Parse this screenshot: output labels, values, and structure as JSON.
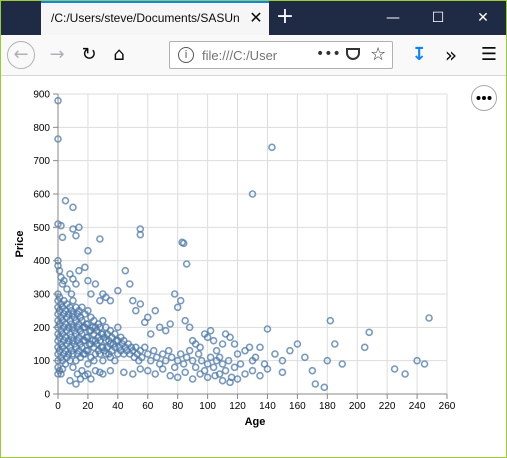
{
  "browser": {
    "tab_title": "/C:/Users/steve/Documents/SASUn",
    "url_text": "file:///C:/User",
    "icons": {
      "back": "back-arrow-icon",
      "forward": "forward-arrow-icon",
      "reload": "reload-icon",
      "home": "home-icon",
      "info": "info-icon",
      "more": "more-icon",
      "pocket": "pocket-icon",
      "bookmark": "star-icon",
      "download": "download-icon",
      "overflow": "overflow-icon",
      "menu": "hamburger-menu-icon"
    },
    "accent_color": "#0a84ff",
    "titlebar_color": "#1f2a44"
  },
  "chart_data": {
    "type": "scatter",
    "title": "",
    "xlabel": "Age",
    "ylabel": "Price",
    "xlim": [
      0,
      260
    ],
    "ylim": [
      0,
      900
    ],
    "xticks": [
      0,
      20,
      40,
      60,
      80,
      100,
      120,
      140,
      160,
      180,
      200,
      220,
      240,
      260
    ],
    "yticks": [
      0,
      100,
      200,
      300,
      400,
      500,
      600,
      700,
      800,
      900
    ],
    "grid": true,
    "point_color": "#4c78a8",
    "points": [
      [
        0,
        880
      ],
      [
        0,
        765
      ],
      [
        0,
        510
      ],
      [
        2,
        505
      ],
      [
        5,
        580
      ],
      [
        3,
        470
      ],
      [
        10,
        560
      ],
      [
        12,
        475
      ],
      [
        14,
        500
      ],
      [
        10,
        495
      ],
      [
        20,
        430
      ],
      [
        28,
        465
      ],
      [
        55,
        495
      ],
      [
        55,
        478
      ],
      [
        83,
        455
      ],
      [
        84,
        452
      ],
      [
        86,
        390
      ],
      [
        143,
        740
      ],
      [
        130,
        600
      ],
      [
        248,
        228
      ],
      [
        0,
        400
      ],
      [
        0,
        385
      ],
      [
        1,
        370
      ],
      [
        2,
        350
      ],
      [
        3,
        330
      ],
      [
        4,
        340
      ],
      [
        6,
        315
      ],
      [
        8,
        360
      ],
      [
        9,
        300
      ],
      [
        10,
        345
      ],
      [
        12,
        330
      ],
      [
        14,
        370
      ],
      [
        18,
        380
      ],
      [
        20,
        340
      ],
      [
        22,
        300
      ],
      [
        25,
        330
      ],
      [
        28,
        280
      ],
      [
        30,
        300
      ],
      [
        32,
        290
      ],
      [
        35,
        280
      ],
      [
        40,
        310
      ],
      [
        45,
        370
      ],
      [
        48,
        330
      ],
      [
        50,
        280
      ],
      [
        52,
        250
      ],
      [
        55,
        270
      ],
      [
        58,
        215
      ],
      [
        60,
        230
      ],
      [
        62,
        180
      ],
      [
        65,
        250
      ],
      [
        68,
        200
      ],
      [
        72,
        190
      ],
      [
        75,
        210
      ],
      [
        78,
        300
      ],
      [
        80,
        260
      ],
      [
        82,
        280
      ],
      [
        85,
        220
      ],
      [
        88,
        200
      ],
      [
        90,
        160
      ],
      [
        92,
        150
      ],
      [
        95,
        140
      ],
      [
        98,
        180
      ],
      [
        100,
        170
      ],
      [
        102,
        190
      ],
      [
        104,
        160
      ],
      [
        106,
        130
      ],
      [
        108,
        110
      ],
      [
        110,
        150
      ],
      [
        112,
        180
      ],
      [
        115,
        170
      ],
      [
        118,
        150
      ],
      [
        120,
        120
      ],
      [
        122,
        90
      ],
      [
        125,
        130
      ],
      [
        128,
        140
      ],
      [
        130,
        100
      ],
      [
        132,
        110
      ],
      [
        135,
        140
      ],
      [
        138,
        90
      ],
      [
        140,
        195
      ],
      [
        145,
        120
      ],
      [
        150,
        100
      ],
      [
        155,
        130
      ],
      [
        160,
        150
      ],
      [
        165,
        110
      ],
      [
        170,
        70
      ],
      [
        172,
        30
      ],
      [
        178,
        20
      ],
      [
        180,
        100
      ],
      [
        182,
        220
      ],
      [
        185,
        150
      ],
      [
        190,
        90
      ],
      [
        205,
        140
      ],
      [
        208,
        185
      ],
      [
        225,
        75
      ],
      [
        232,
        60
      ],
      [
        245,
        90
      ],
      [
        240,
        100
      ],
      [
        0,
        300
      ],
      [
        0,
        280
      ],
      [
        0,
        260
      ],
      [
        0,
        240
      ],
      [
        0,
        220
      ],
      [
        0,
        200
      ],
      [
        0,
        180
      ],
      [
        0,
        160
      ],
      [
        0,
        140
      ],
      [
        0,
        120
      ],
      [
        0,
        100
      ],
      [
        0,
        80
      ],
      [
        1,
        290
      ],
      [
        1,
        250
      ],
      [
        1,
        210
      ],
      [
        1,
        170
      ],
      [
        1,
        130
      ],
      [
        2,
        270
      ],
      [
        2,
        230
      ],
      [
        2,
        190
      ],
      [
        2,
        150
      ],
      [
        2,
        110
      ],
      [
        3,
        260
      ],
      [
        3,
        220
      ],
      [
        3,
        180
      ],
      [
        3,
        140
      ],
      [
        3,
        100
      ],
      [
        4,
        280
      ],
      [
        4,
        240
      ],
      [
        4,
        200
      ],
      [
        4,
        160
      ],
      [
        4,
        120
      ],
      [
        5,
        250
      ],
      [
        5,
        210
      ],
      [
        5,
        170
      ],
      [
        5,
        130
      ],
      [
        5,
        90
      ],
      [
        6,
        270
      ],
      [
        6,
        230
      ],
      [
        6,
        190
      ],
      [
        6,
        150
      ],
      [
        6,
        110
      ],
      [
        7,
        240
      ],
      [
        7,
        200
      ],
      [
        7,
        160
      ],
      [
        7,
        120
      ],
      [
        8,
        260
      ],
      [
        8,
        220
      ],
      [
        8,
        180
      ],
      [
        8,
        140
      ],
      [
        8,
        100
      ],
      [
        9,
        250
      ],
      [
        9,
        210
      ],
      [
        9,
        170
      ],
      [
        9,
        130
      ],
      [
        10,
        280
      ],
      [
        10,
        240
      ],
      [
        10,
        200
      ],
      [
        10,
        160
      ],
      [
        10,
        120
      ],
      [
        10,
        80
      ],
      [
        11,
        230
      ],
      [
        11,
        190
      ],
      [
        11,
        150
      ],
      [
        12,
        260
      ],
      [
        12,
        220
      ],
      [
        12,
        180
      ],
      [
        12,
        140
      ],
      [
        12,
        100
      ],
      [
        13,
        240
      ],
      [
        13,
        200
      ],
      [
        13,
        160
      ],
      [
        13,
        120
      ],
      [
        14,
        250
      ],
      [
        14,
        210
      ],
      [
        14,
        170
      ],
      [
        14,
        130
      ],
      [
        15,
        230
      ],
      [
        15,
        190
      ],
      [
        15,
        150
      ],
      [
        15,
        110
      ],
      [
        16,
        260
      ],
      [
        16,
        220
      ],
      [
        16,
        180
      ],
      [
        16,
        140
      ],
      [
        17,
        200
      ],
      [
        17,
        160
      ],
      [
        17,
        120
      ],
      [
        18,
        240
      ],
      [
        18,
        200
      ],
      [
        18,
        160
      ],
      [
        18,
        120
      ],
      [
        19,
        210
      ],
      [
        19,
        170
      ],
      [
        19,
        130
      ],
      [
        20,
        250
      ],
      [
        20,
        210
      ],
      [
        20,
        170
      ],
      [
        20,
        130
      ],
      [
        20,
        90
      ],
      [
        21,
        190
      ],
      [
        21,
        150
      ],
      [
        22,
        230
      ],
      [
        22,
        190
      ],
      [
        22,
        150
      ],
      [
        22,
        110
      ],
      [
        23,
        200
      ],
      [
        23,
        160
      ],
      [
        24,
        220
      ],
      [
        24,
        180
      ],
      [
        24,
        140
      ],
      [
        24,
        100
      ],
      [
        25,
        200
      ],
      [
        25,
        160
      ],
      [
        25,
        120
      ],
      [
        26,
        190
      ],
      [
        26,
        150
      ],
      [
        27,
        210
      ],
      [
        27,
        170
      ],
      [
        27,
        130
      ],
      [
        28,
        200
      ],
      [
        28,
        160
      ],
      [
        28,
        120
      ],
      [
        29,
        180
      ],
      [
        29,
        140
      ],
      [
        30,
        220
      ],
      [
        30,
        180
      ],
      [
        30,
        140
      ],
      [
        30,
        100
      ],
      [
        31,
        170
      ],
      [
        31,
        130
      ],
      [
        32,
        200
      ],
      [
        32,
        160
      ],
      [
        32,
        120
      ],
      [
        33,
        180
      ],
      [
        33,
        140
      ],
      [
        34,
        160
      ],
      [
        34,
        120
      ],
      [
        35,
        190
      ],
      [
        35,
        150
      ],
      [
        35,
        110
      ],
      [
        36,
        170
      ],
      [
        36,
        130
      ],
      [
        37,
        150
      ],
      [
        38,
        180
      ],
      [
        38,
        140
      ],
      [
        38,
        100
      ],
      [
        39,
        160
      ],
      [
        40,
        200
      ],
      [
        40,
        160
      ],
      [
        40,
        120
      ],
      [
        41,
        140
      ],
      [
        42,
        170
      ],
      [
        42,
        130
      ],
      [
        43,
        150
      ],
      [
        44,
        160
      ],
      [
        44,
        120
      ],
      [
        45,
        140
      ],
      [
        46,
        130
      ],
      [
        47,
        150
      ],
      [
        48,
        120
      ],
      [
        49,
        140
      ],
      [
        50,
        130
      ],
      [
        51,
        110
      ],
      [
        52,
        140
      ],
      [
        53,
        120
      ],
      [
        54,
        100
      ],
      [
        55,
        130
      ],
      [
        56,
        110
      ],
      [
        58,
        140
      ],
      [
        60,
        120
      ],
      [
        62,
        100
      ],
      [
        64,
        130
      ],
      [
        66,
        110
      ],
      [
        68,
        90
      ],
      [
        70,
        120
      ],
      [
        72,
        100
      ],
      [
        74,
        130
      ],
      [
        76,
        110
      ],
      [
        78,
        80
      ],
      [
        80,
        100
      ],
      [
        82,
        120
      ],
      [
        84,
        90
      ],
      [
        86,
        110
      ],
      [
        88,
        130
      ],
      [
        90,
        100
      ],
      [
        92,
        80
      ],
      [
        94,
        120
      ],
      [
        96,
        100
      ],
      [
        98,
        70
      ],
      [
        100,
        90
      ],
      [
        102,
        110
      ],
      [
        104,
        80
      ],
      [
        106,
        100
      ],
      [
        108,
        60
      ],
      [
        110,
        90
      ],
      [
        112,
        70
      ],
      [
        114,
        100
      ],
      [
        116,
        50
      ],
      [
        118,
        80
      ],
      [
        13,
        60
      ],
      [
        15,
        45
      ],
      [
        16,
        70
      ],
      [
        12,
        30
      ],
      [
        18,
        55
      ],
      [
        8,
        40
      ],
      [
        20,
        60
      ],
      [
        25,
        70
      ],
      [
        22,
        45
      ],
      [
        1,
        70
      ],
      [
        2,
        60
      ],
      [
        3,
        75
      ],
      [
        0,
        60
      ],
      [
        28,
        65
      ],
      [
        30,
        60
      ],
      [
        35,
        70
      ],
      [
        44,
        65
      ],
      [
        50,
        60
      ],
      [
        55,
        75
      ],
      [
        60,
        70
      ],
      [
        65,
        60
      ],
      [
        70,
        75
      ],
      [
        75,
        55
      ],
      [
        80,
        50
      ],
      [
        85,
        65
      ],
      [
        90,
        45
      ],
      [
        95,
        60
      ],
      [
        100,
        50
      ],
      [
        105,
        55
      ],
      [
        110,
        40
      ],
      [
        115,
        35
      ],
      [
        120,
        45
      ],
      [
        125,
        60
      ],
      [
        130,
        70
      ],
      [
        135,
        55
      ],
      [
        140,
        75
      ],
      [
        150,
        65
      ]
    ]
  }
}
